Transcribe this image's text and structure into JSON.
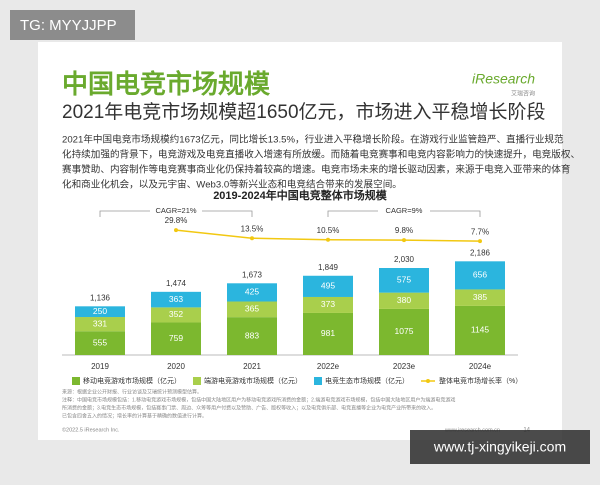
{
  "watermark": "TG: MYYJJPP",
  "footer_watermark": "www.tj-xingyikeji.com",
  "slide": {
    "title": "中国电竞市场规模",
    "logo": "iResearch",
    "logo_sub": "艾瑞咨询",
    "subtitle": "2021年电竞市场规模超1650亿元，市场进入平稳增长阶段",
    "paragraph": [
      "2021年中国电竞市场规模约1673亿元，同比增长13.5%，行业进入平稳增长阶段。在游戏行业监管趋严、直播行业规范",
      "化持续加强的背景下，电竞游戏及电竞直播收入增速有所放缓。而随着电竞赛事和电竞内容影响力的快速提升，电竞版权、",
      "赛事赞助、内容制作等电竞赛事商业化仍保持着较高的增速。电竞市场未来的增长驱动因素，来源于电竞入亚带来的体育",
      "化和商业化机会，以及元宇宙、Web3.0等新兴业态和电竞结合带来的发展空间。"
    ],
    "notes": [
      "来源：根据企业公开财报、行业访谈及艾瑞统计预测模型估算。",
      "注释：中国电竞市场规模包括：1.移动电竞游戏市场规模，包括中国大陆地区用户为移动电竞游戏所消费的金额；2.端游电竞游戏市场规模，包括中国大陆地区用户为端游电竞游戏",
      "所消费的金额；3.电竞生态市场规模，包括赛事门票、周边、众筹等用户付费以及赞助、广告、版权等收入；以及电竞俱乐部、电竞直播等企业为电竞产业所带来的收入。",
      "已包含四舍五入的情况；增长率的计算基于精确的数值进行计算。"
    ],
    "copyright": "©2022.5 iResearch Inc.",
    "website": "www.iresearch.com.cn",
    "page": "14"
  },
  "chart_data": {
    "type": "bar",
    "stacked": true,
    "title": "2019-2024年中国电竞整体市场规模",
    "categories": [
      "2019",
      "2020",
      "2021",
      "2022e",
      "2023e",
      "2024e"
    ],
    "series": [
      {
        "name": "移动电竞游戏市场规模（亿元）",
        "color": "#7cb82f",
        "values": [
          555,
          759,
          883,
          981,
          1075,
          1145
        ]
      },
      {
        "name": "端游电竞游戏市场规模（亿元）",
        "color": "#a9cf4c",
        "values": [
          331,
          352,
          365,
          373,
          380,
          385
        ]
      },
      {
        "name": "电竞生态市场规模（亿元）",
        "color": "#2bb5de",
        "values": [
          250,
          363,
          425,
          495,
          575,
          656
        ]
      },
      {
        "name": "整体电竞市场增长率（%）",
        "color": "#f2c811",
        "type": "line",
        "axis": "y2",
        "values": [
          null,
          29.8,
          13.5,
          10.5,
          9.8,
          7.7
        ],
        "value_labels": [
          null,
          "29.8%",
          "13.5%",
          "10.5%",
          "9.8%",
          "7.7%"
        ]
      }
    ],
    "totals": [
      1136,
      1474,
      1673,
      1849,
      2030,
      2186
    ],
    "total_labels": [
      "1,136",
      "1,474",
      "1,673",
      "1,849",
      "2,030",
      "2,186"
    ],
    "annotations": [
      "CAGR=21%",
      "CAGR=9%"
    ],
    "ylim": [
      0,
      3500
    ],
    "y2lim": [
      -220,
      80
    ]
  }
}
